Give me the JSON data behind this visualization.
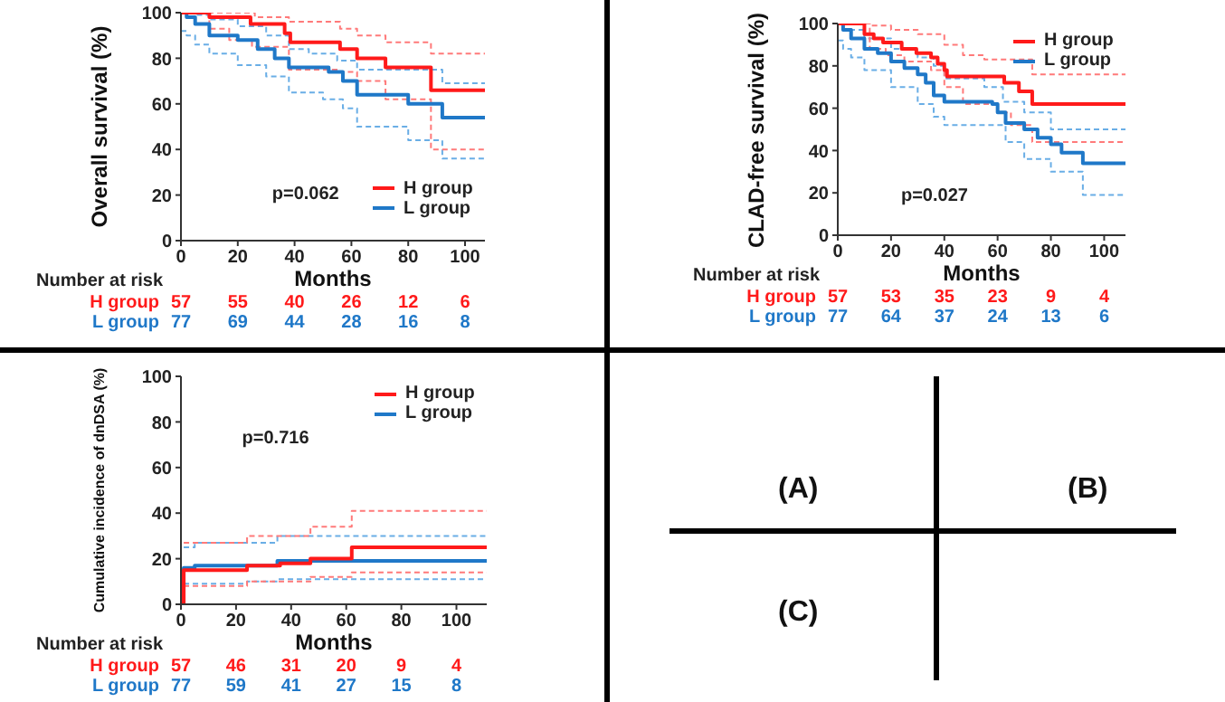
{
  "chart_data": [
    {
      "type": "step",
      "ylabel": "Overall survival (%)",
      "xlabel": "Months",
      "xlim": [
        0,
        107
      ],
      "xticks": [
        0,
        20,
        40,
        60,
        80,
        100
      ],
      "ylim": [
        0,
        100
      ],
      "yticks": [
        0,
        20,
        40,
        60,
        80,
        100
      ],
      "legend": "bottom right",
      "series": [
        {
          "name": "H group",
          "color": "#ff1a1a",
          "x": [
            0,
            10,
            24.5,
            36.5,
            38.5,
            56,
            62,
            72,
            88,
            107
          ],
          "values": [
            100,
            98,
            95,
            91,
            87,
            84,
            80,
            76,
            66,
            66
          ]
        },
        {
          "name": "L group",
          "color": "#1f78c8",
          "x": [
            0,
            2,
            5,
            10,
            20,
            27,
            33,
            38,
            52,
            57,
            62,
            80,
            92,
            107
          ],
          "values": [
            100,
            98,
            95,
            90,
            88,
            84,
            80,
            76,
            74,
            70,
            64,
            60,
            54,
            54
          ]
        },
        {
          "color": "#ff7a7a",
          "line_style": "dashed",
          "x": [
            0,
            26,
            38,
            56,
            62,
            72,
            88,
            107
          ],
          "values": [
            100,
            98,
            96,
            93,
            90,
            87,
            82,
            82
          ]
        },
        {
          "color": "#ff7a7a",
          "line_style": "dashed",
          "x": [
            0,
            10,
            17,
            25,
            38,
            56,
            62,
            72,
            88,
            107
          ],
          "values": [
            100,
            93,
            88,
            85,
            75,
            74,
            70,
            62,
            40,
            40
          ]
        },
        {
          "color": "#6aaee6",
          "line_style": "dashed",
          "x": [
            0,
            5,
            10,
            20,
            30,
            38,
            45,
            55,
            62,
            80,
            92,
            107
          ],
          "values": [
            100,
            99,
            97,
            94,
            90,
            84,
            82,
            79,
            75,
            75,
            69,
            69
          ]
        },
        {
          "color": "#6aaee6",
          "line_style": "dashed",
          "x": [
            0,
            2,
            5,
            10,
            20,
            30,
            38,
            50,
            57,
            62,
            80,
            92,
            107
          ],
          "values": [
            92,
            90,
            86,
            82,
            77,
            72,
            65,
            62,
            58,
            50,
            44,
            36,
            36
          ]
        }
      ],
      "annotations": [
        "p=0.062",
        "Number at risk",
        "H group",
        "57",
        "55",
        "40",
        "26",
        "12",
        "6",
        "L group",
        "77",
        "69",
        "44",
        "28",
        "16",
        "8"
      ]
    },
    {
      "type": "step",
      "ylabel": "CLAD-free survival (%)",
      "xlabel": "Months",
      "xlim": [
        0,
        108
      ],
      "xticks": [
        0,
        20,
        40,
        60,
        80,
        100
      ],
      "ylim": [
        0,
        100
      ],
      "yticks": [
        0,
        20,
        40,
        60,
        80,
        100
      ],
      "legend": "top right",
      "series": [
        {
          "name": "H group",
          "color": "#ff1a1a",
          "x": [
            0,
            10,
            13.5,
            17,
            24,
            29.5,
            35,
            37.5,
            40,
            41,
            59,
            62.5,
            68,
            73,
            108
          ],
          "values": [
            100,
            95,
            93,
            91,
            88,
            86,
            84,
            81,
            78,
            75,
            75,
            72,
            68,
            62,
            62
          ]
        },
        {
          "name": "L group",
          "color": "#1f78c8",
          "x": [
            0,
            2,
            5,
            10,
            15,
            20,
            25,
            30,
            33,
            36,
            40,
            58,
            60,
            63,
            70,
            75,
            80,
            84,
            92,
            108
          ],
          "values": [
            100,
            97,
            93,
            88,
            86,
            82,
            79,
            76,
            72,
            66,
            63,
            62,
            58,
            53,
            50,
            46,
            43,
            39,
            34,
            34
          ]
        },
        {
          "color": "#ff7a7a",
          "line_style": "dashed",
          "x": [
            0,
            12,
            20,
            30,
            40,
            47,
            55,
            73,
            108
          ],
          "values": [
            100,
            99,
            97,
            95,
            90,
            85,
            83,
            76,
            76
          ]
        },
        {
          "color": "#ff7a7a",
          "line_style": "dashed",
          "x": [
            0,
            12,
            18,
            25,
            35,
            40,
            47,
            60,
            65,
            73,
            108
          ],
          "values": [
            100,
            88,
            85,
            82,
            78,
            70,
            62,
            58,
            52,
            44,
            44
          ]
        },
        {
          "color": "#6aaee6",
          "line_style": "dashed",
          "x": [
            0,
            5,
            10,
            20,
            30,
            36,
            40,
            55,
            62,
            70,
            80,
            108
          ],
          "values": [
            100,
            97,
            93,
            88,
            84,
            80,
            74,
            70,
            63,
            58,
            50,
            50
          ]
        },
        {
          "color": "#6aaee6",
          "line_style": "dashed",
          "x": [
            0,
            2,
            5,
            10,
            20,
            30,
            36,
            40,
            58,
            63,
            70,
            80,
            92,
            108
          ],
          "values": [
            92,
            88,
            84,
            78,
            70,
            62,
            56,
            52,
            52,
            44,
            36,
            30,
            19,
            19
          ]
        }
      ],
      "annotations": [
        "p=0.027",
        "Number at risk",
        "H group",
        "57",
        "53",
        "35",
        "23",
        "9",
        "4",
        "L group",
        "77",
        "64",
        "37",
        "24",
        "13",
        "6"
      ]
    },
    {
      "type": "step",
      "ylabel": "Cumulative incidence of dnDSA (%)",
      "xlabel": "Months",
      "xlim": [
        0,
        111
      ],
      "xticks": [
        0,
        20,
        40,
        60,
        80,
        100
      ],
      "ylim": [
        0,
        100
      ],
      "yticks": [
        0,
        20,
        40,
        60,
        80,
        100
      ],
      "legend": "top right",
      "series": [
        {
          "name": "H group",
          "color": "#ff1a1a",
          "x": [
            0,
            1,
            24,
            36,
            47,
            62,
            111
          ],
          "values": [
            0,
            15,
            17,
            18,
            20,
            25,
            25
          ]
        },
        {
          "name": "L group",
          "color": "#1f78c8",
          "x": [
            0,
            1,
            5,
            35,
            111
          ],
          "values": [
            0,
            16,
            17,
            19,
            19
          ]
        },
        {
          "color": "#ff7a7a",
          "line_style": "dashed",
          "x": [
            1,
            24,
            47,
            62,
            111
          ],
          "values": [
            27,
            30,
            34,
            41,
            41
          ]
        },
        {
          "color": "#ff7a7a",
          "line_style": "dashed",
          "x": [
            1,
            24,
            47,
            62,
            111
          ],
          "values": [
            8,
            10,
            12,
            14,
            14
          ]
        },
        {
          "color": "#6aaee6",
          "line_style": "dashed",
          "x": [
            1,
            5,
            35,
            111
          ],
          "values": [
            25,
            27,
            30,
            30
          ]
        },
        {
          "color": "#6aaee6",
          "line_style": "dashed",
          "x": [
            1,
            24,
            35,
            111
          ],
          "values": [
            9,
            10,
            11,
            11
          ]
        }
      ],
      "annotations": [
        "p=0.716",
        "Number at risk",
        "H group",
        "57",
        "46",
        "31",
        "20",
        "9",
        "4",
        "L group",
        "77",
        "59",
        "41",
        "27",
        "15",
        "8"
      ]
    },
    {
      "type": "other",
      "annotations": [
        "(A)",
        "(B)",
        "(C)"
      ]
    }
  ]
}
